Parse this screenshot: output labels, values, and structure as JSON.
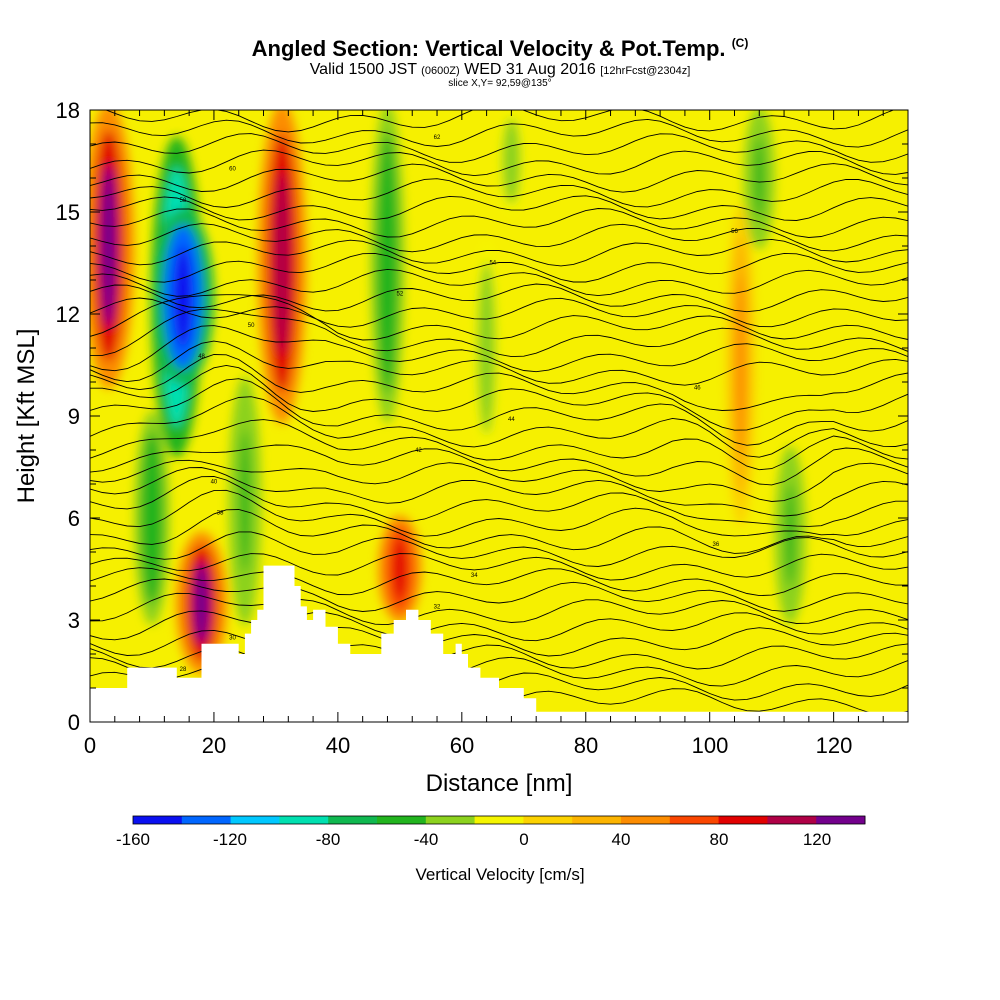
{
  "title": {
    "main": "Angled Section: Vertical Velocity & Pot.Temp.",
    "main_suffix": "(C)",
    "valid_prefix": "Valid 1500 JST",
    "valid_utc": "(0600Z)",
    "valid_date": "WED 31 Aug 2016",
    "forecast": "[12hrFcst@2304z]",
    "slice": "slice X,Y= 92,59@135°"
  },
  "chart_data": {
    "type": "heatmap",
    "title": "Angled Section: Vertical Velocity & Pot.Temp.",
    "xlabel": "Distance [nm]",
    "ylabel": "Height [Kft MSL]",
    "xlim": [
      0,
      132
    ],
    "ylim": [
      0,
      18
    ],
    "x_ticks": [
      0,
      20,
      40,
      60,
      80,
      100,
      120
    ],
    "y_ticks": [
      0,
      3,
      6,
      9,
      12,
      15,
      18
    ],
    "colorbar": {
      "label": "Vertical Velocity [cm/s]",
      "tick_values": [
        -160,
        -120,
        -80,
        -40,
        0,
        40,
        80,
        120
      ],
      "range": [
        -160,
        140
      ],
      "colors": [
        "#0a10f0",
        "#0066ff",
        "#00c8ff",
        "#00e0b0",
        "#10b850",
        "#22b41e",
        "#8cd21e",
        "#f5f500",
        "#fcd200",
        "#fcb400",
        "#fc8c00",
        "#fa4600",
        "#e10000",
        "#af0046",
        "#73008c"
      ]
    },
    "features": [
      {
        "label": "updraft",
        "x": 3,
        "y_range": [
          10,
          18
        ],
        "w": 120
      },
      {
        "label": "downdraft",
        "x": 14,
        "y_range": [
          8,
          17
        ],
        "w": -120
      },
      {
        "label": "downdraft core",
        "x": 15,
        "y_range": [
          10,
          15
        ],
        "w": -160
      },
      {
        "label": "updraft",
        "x": 18,
        "y_range": [
          1.5,
          5.5
        ],
        "w": 120
      },
      {
        "label": "downdraft",
        "x": 10,
        "y_range": [
          3,
          9
        ],
        "w": -60
      },
      {
        "label": "downdraft",
        "x": 25,
        "y_range": [
          3,
          10
        ],
        "w": -50
      },
      {
        "label": "updraft",
        "x": 31,
        "y_range": [
          9,
          18
        ],
        "w": 110
      },
      {
        "label": "downdraft",
        "x": 48,
        "y_range": [
          9,
          18
        ],
        "w": -55
      },
      {
        "label": "updraft",
        "x": 50,
        "y_range": [
          3,
          6
        ],
        "w": 90
      },
      {
        "label": "downdraft",
        "x": 64,
        "y_range": [
          8,
          14
        ],
        "w": -40
      },
      {
        "label": "downdraft",
        "x": 68,
        "y_range": [
          15,
          18
        ],
        "w": -40
      },
      {
        "label": "updraft",
        "x": 105,
        "y_range": [
          6,
          15
        ],
        "w": 40
      },
      {
        "label": "downdraft",
        "x": 113,
        "y_range": [
          3,
          8
        ],
        "w": -45
      },
      {
        "label": "downdraft",
        "x": 108,
        "y_range": [
          14,
          18
        ],
        "w": -45
      }
    ],
    "terrain": [
      [
        0,
        1
      ],
      [
        2,
        1
      ],
      [
        6,
        1.6
      ],
      [
        13,
        1.6
      ],
      [
        14,
        1.3
      ],
      [
        16,
        1.3
      ],
      [
        18,
        2.3
      ],
      [
        22,
        2.3
      ],
      [
        24,
        2
      ],
      [
        25,
        2.6
      ],
      [
        26,
        3
      ],
      [
        27,
        3.3
      ],
      [
        28,
        4.6
      ],
      [
        32,
        4.6
      ],
      [
        33,
        4
      ],
      [
        34,
        3.4
      ],
      [
        35,
        3
      ],
      [
        36,
        3.3
      ],
      [
        37,
        3.3
      ],
      [
        38,
        2.8
      ],
      [
        40,
        2.3
      ],
      [
        42,
        2
      ],
      [
        45,
        2
      ],
      [
        47,
        2.6
      ],
      [
        49,
        3
      ],
      [
        51,
        3.3
      ],
      [
        53,
        3
      ],
      [
        55,
        2.6
      ],
      [
        57,
        2
      ],
      [
        59,
        2.3
      ],
      [
        60,
        2
      ],
      [
        61,
        1.6
      ],
      [
        63,
        1.3
      ],
      [
        66,
        1
      ],
      [
        70,
        0.7
      ],
      [
        72,
        0.3
      ],
      [
        132,
        0.3
      ]
    ],
    "contour_labels": [
      "28",
      "30",
      "32",
      "34",
      "36",
      "38",
      "40",
      "42",
      "44",
      "46",
      "48",
      "50",
      "52",
      "54",
      "56",
      "58",
      "60",
      "62"
    ]
  },
  "axes": {
    "x_ticks": [
      "0",
      "20",
      "40",
      "60",
      "80",
      "100",
      "120"
    ],
    "y_ticks": [
      "0",
      "3",
      "6",
      "9",
      "12",
      "15",
      "18"
    ],
    "xlabel": "Distance [nm]",
    "ylabel": "Height [Kft MSL]"
  },
  "colorbar": {
    "ticks": [
      "-160",
      "-120",
      "-80",
      "-40",
      "0",
      "40",
      "80",
      "120"
    ],
    "label": "Vertical Velocity [cm/s]"
  }
}
